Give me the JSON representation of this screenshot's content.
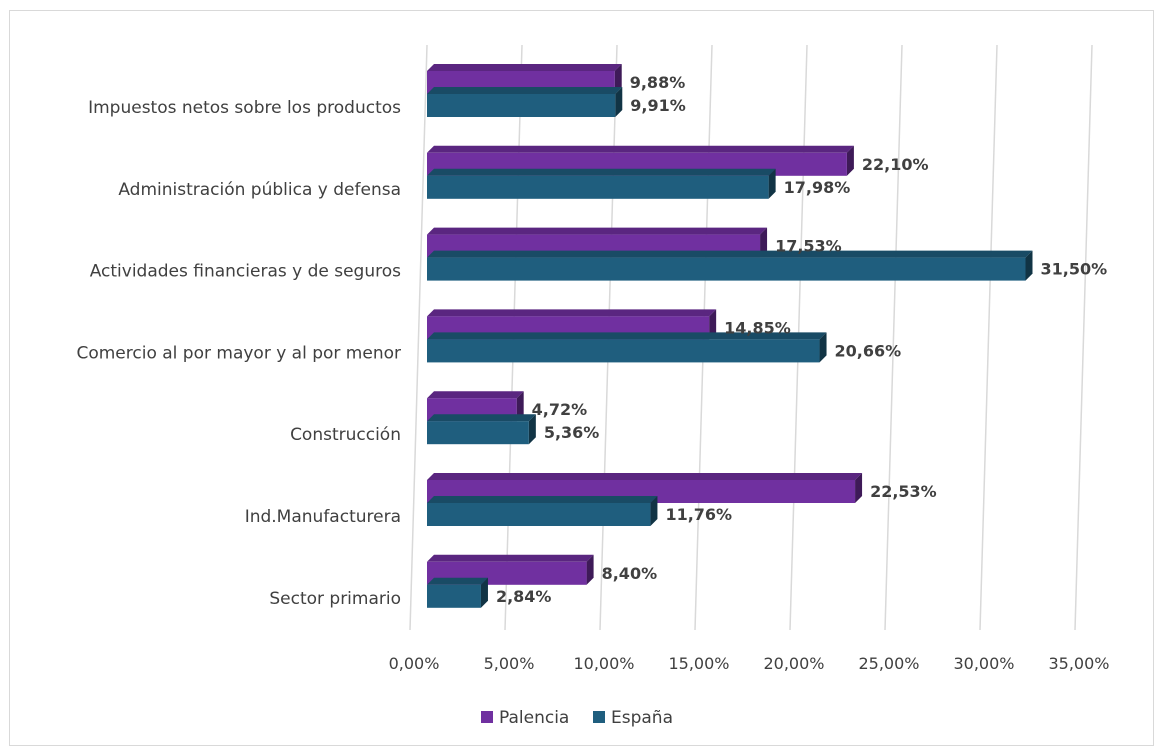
{
  "chart_data": {
    "type": "bar",
    "orientation": "horizontal",
    "title": "",
    "xlabel": "",
    "ylabel": "",
    "categories": [
      "Impuestos netos sobre los productos",
      "Administración pública y defensa",
      "Actividades financieras y de seguros",
      "Comercio al por mayor y al por menor",
      "Construcción",
      "Ind.Manufacturera",
      "Sector primario"
    ],
    "series": [
      {
        "name": "Palencia",
        "color": "#7030a0",
        "values": [
          9.88,
          22.1,
          17.53,
          14.85,
          4.72,
          22.53,
          8.4
        ],
        "labels": [
          "9,88%",
          "22,10%",
          "17,53%",
          "14,85%",
          "4,72%",
          "22,53%",
          "8,40%"
        ]
      },
      {
        "name": "España",
        "color": "#1f5e7e",
        "values": [
          9.91,
          17.98,
          31.5,
          20.66,
          5.36,
          11.76,
          2.84
        ],
        "labels": [
          "9,91%",
          "17,98%",
          "31,50%",
          "20,66%",
          "5,36%",
          "11,76%",
          "2,84%"
        ]
      }
    ],
    "xlim": [
      0,
      35
    ],
    "xticks": [
      0,
      5,
      10,
      15,
      20,
      25,
      30,
      35
    ],
    "xtick_labels": [
      "0,00%",
      "5,00%",
      "10,00%",
      "15,00%",
      "20,00%",
      "25,00%",
      "30,00%",
      "35,00%"
    ],
    "grid": true,
    "legend_position": "bottom"
  }
}
